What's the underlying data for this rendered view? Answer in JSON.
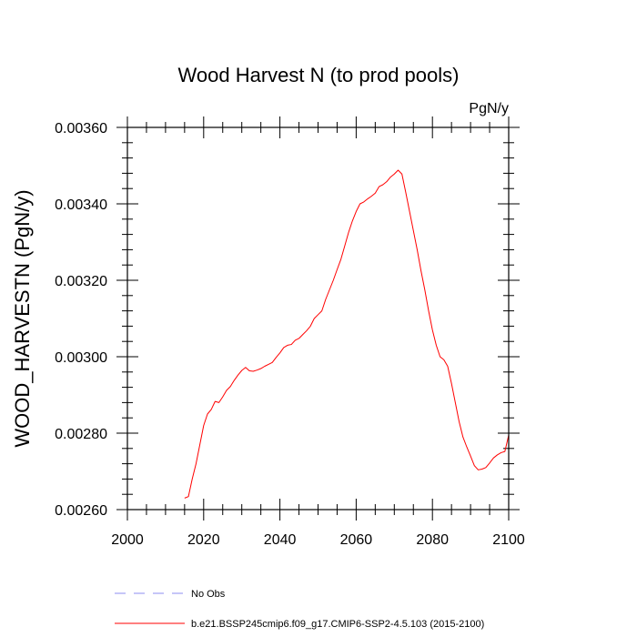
{
  "chart_data": {
    "type": "line",
    "title": "Wood Harvest N (to prod pools)",
    "units": "PgN/y",
    "xlabel": "",
    "ylabel": "WOOD_HARVESTN  (PgN/y)",
    "xlim": [
      2000,
      2100
    ],
    "ylim": [
      0.0026,
      0.0036
    ],
    "x_ticks": [
      2000,
      2020,
      2040,
      2060,
      2080,
      2100
    ],
    "x_tick_labels": [
      "2000",
      "2020",
      "2040",
      "2060",
      "2080",
      "2100"
    ],
    "y_ticks": [
      0.0026,
      0.0028,
      0.003,
      0.0032,
      0.0034,
      0.0036
    ],
    "y_tick_labels": [
      "0.00260",
      "0.00280",
      "0.00300",
      "0.00320",
      "0.00340",
      "0.00360"
    ],
    "grid": false,
    "legend_position": "bottom",
    "legend": [
      {
        "label": "No Obs",
        "color": "#8c8cf0",
        "style": "dashed"
      },
      {
        "label": "b.e21.BSSP245cmip6.f09_g17.CMIP6-SSP2-4.5.103 (2015-2100)",
        "color": "#ff0000",
        "style": "solid"
      }
    ],
    "series": [
      {
        "color": "#ff0000",
        "x": [
          2015,
          2016,
          2017,
          2018,
          2019,
          2020,
          2021,
          2022,
          2023,
          2024,
          2025,
          2026,
          2027,
          2028,
          2029,
          2030,
          2031,
          2032,
          2033,
          2034,
          2035,
          2036,
          2037,
          2038,
          2039,
          2040,
          2041,
          2042,
          2043,
          2044,
          2045,
          2046,
          2047,
          2048,
          2049,
          2050,
          2051,
          2052,
          2053,
          2054,
          2055,
          2056,
          2057,
          2058,
          2059,
          2060,
          2061,
          2062,
          2063,
          2064,
          2065,
          2066,
          2067,
          2068,
          2069,
          2070,
          2071,
          2072,
          2073,
          2074,
          2075,
          2076,
          2077,
          2078,
          2079,
          2080,
          2081,
          2082,
          2083,
          2084,
          2085,
          2086,
          2087,
          2088,
          2089,
          2090,
          2091,
          2092,
          2093,
          2094,
          2095,
          2096,
          2097,
          2098,
          2099,
          2100
        ],
        "values": [
          0.00263,
          0.002634,
          0.00268,
          0.00272,
          0.00277,
          0.00282,
          0.00285,
          0.002862,
          0.002883,
          0.00288,
          0.002895,
          0.002912,
          0.002922,
          0.002938,
          0.002952,
          0.002964,
          0.002972,
          0.002963,
          0.002962,
          0.002965,
          0.002969,
          0.002975,
          0.00298,
          0.002985,
          0.002998,
          0.00301,
          0.003024,
          0.00303,
          0.003032,
          0.003043,
          0.003048,
          0.003058,
          0.003068,
          0.00308,
          0.0031,
          0.00311,
          0.00312,
          0.00315,
          0.003175,
          0.0032,
          0.003228,
          0.003255,
          0.00329,
          0.003325,
          0.003355,
          0.00338,
          0.0034,
          0.003405,
          0.003413,
          0.00342,
          0.003428,
          0.003445,
          0.00345,
          0.003458,
          0.00347,
          0.003478,
          0.003488,
          0.003478,
          0.00343,
          0.00338,
          0.00333,
          0.00328,
          0.003225,
          0.003175,
          0.00312,
          0.00307,
          0.00303,
          0.003,
          0.002992,
          0.002975,
          0.00293,
          0.00288,
          0.00283,
          0.00279,
          0.002764,
          0.00274,
          0.002715,
          0.002704,
          0.002706,
          0.00271,
          0.002722,
          0.002735,
          0.002743,
          0.002749,
          0.002752,
          0.002795
        ]
      }
    ]
  }
}
